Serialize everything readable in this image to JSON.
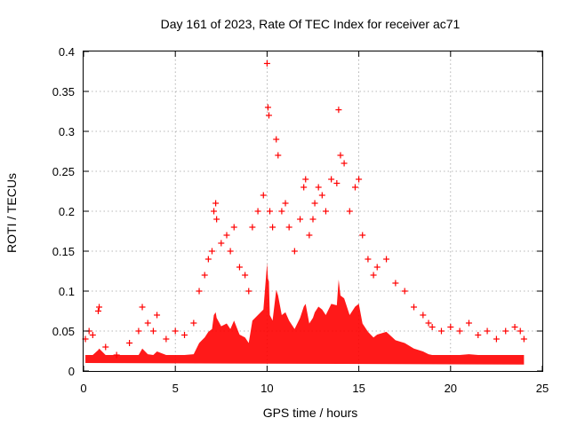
{
  "chart_data": {
    "type": "scatter",
    "title": "Day 161 of 2023, Rate Of TEC Index for receiver ac71",
    "xlabel": "GPS time / hours",
    "ylabel": "ROTI / TECUs",
    "xlim": [
      0,
      25
    ],
    "ylim": [
      0,
      0.4
    ],
    "xticks": [
      0,
      5,
      10,
      15,
      20,
      25
    ],
    "xtick_labels": [
      "0",
      "5",
      "10",
      "15",
      "20",
      "25"
    ],
    "yticks": [
      0,
      0.05,
      0.1,
      0.15,
      0.2,
      0.25,
      0.3,
      0.35,
      0.4
    ],
    "ytick_labels": [
      "0",
      "0.05",
      "0.1",
      "0.15",
      "0.2",
      "0.25",
      "0.3",
      "0.35",
      "0.4"
    ],
    "grid": true,
    "marker": "plus",
    "color": "#ff0000",
    "series": [
      {
        "name": "ROTI",
        "x": [
          0.1,
          0.3,
          0.5,
          0.8,
          0.85,
          1.2,
          1.8,
          2.5,
          3.0,
          3.2,
          3.5,
          3.8,
          4.0,
          4.5,
          5.0,
          5.5,
          6.0,
          6.3,
          6.6,
          6.8,
          7.0,
          7.1,
          7.2,
          7.25,
          7.5,
          7.8,
          8.0,
          8.2,
          8.5,
          8.8,
          9.0,
          9.2,
          9.5,
          9.8,
          10.0,
          10.05,
          10.1,
          10.15,
          10.3,
          10.5,
          10.6,
          10.8,
          11.0,
          11.2,
          11.5,
          11.8,
          12.0,
          12.1,
          12.3,
          12.5,
          12.6,
          12.8,
          13.0,
          13.2,
          13.5,
          13.8,
          13.9,
          14.0,
          14.2,
          14.5,
          14.8,
          15.0,
          15.2,
          15.5,
          15.8,
          16.0,
          16.5,
          17.0,
          17.5,
          18.0,
          18.5,
          18.8,
          19.0,
          19.5,
          20.0,
          20.5,
          21.0,
          21.5,
          22.0,
          22.5,
          23.0,
          23.5,
          23.8,
          24.0
        ],
        "y": [
          0.04,
          0.05,
          0.045,
          0.075,
          0.08,
          0.03,
          0.02,
          0.035,
          0.05,
          0.08,
          0.06,
          0.05,
          0.07,
          0.04,
          0.05,
          0.045,
          0.06,
          0.1,
          0.12,
          0.14,
          0.15,
          0.2,
          0.21,
          0.19,
          0.16,
          0.17,
          0.15,
          0.18,
          0.13,
          0.12,
          0.1,
          0.18,
          0.2,
          0.22,
          0.385,
          0.33,
          0.32,
          0.2,
          0.18,
          0.29,
          0.27,
          0.2,
          0.21,
          0.18,
          0.15,
          0.19,
          0.23,
          0.24,
          0.17,
          0.19,
          0.21,
          0.23,
          0.22,
          0.2,
          0.24,
          0.235,
          0.327,
          0.27,
          0.26,
          0.2,
          0.23,
          0.24,
          0.17,
          0.14,
          0.12,
          0.13,
          0.14,
          0.11,
          0.1,
          0.08,
          0.07,
          0.06,
          0.055,
          0.05,
          0.055,
          0.05,
          0.06,
          0.045,
          0.05,
          0.04,
          0.05,
          0.055,
          0.05,
          0.04
        ]
      }
    ]
  }
}
